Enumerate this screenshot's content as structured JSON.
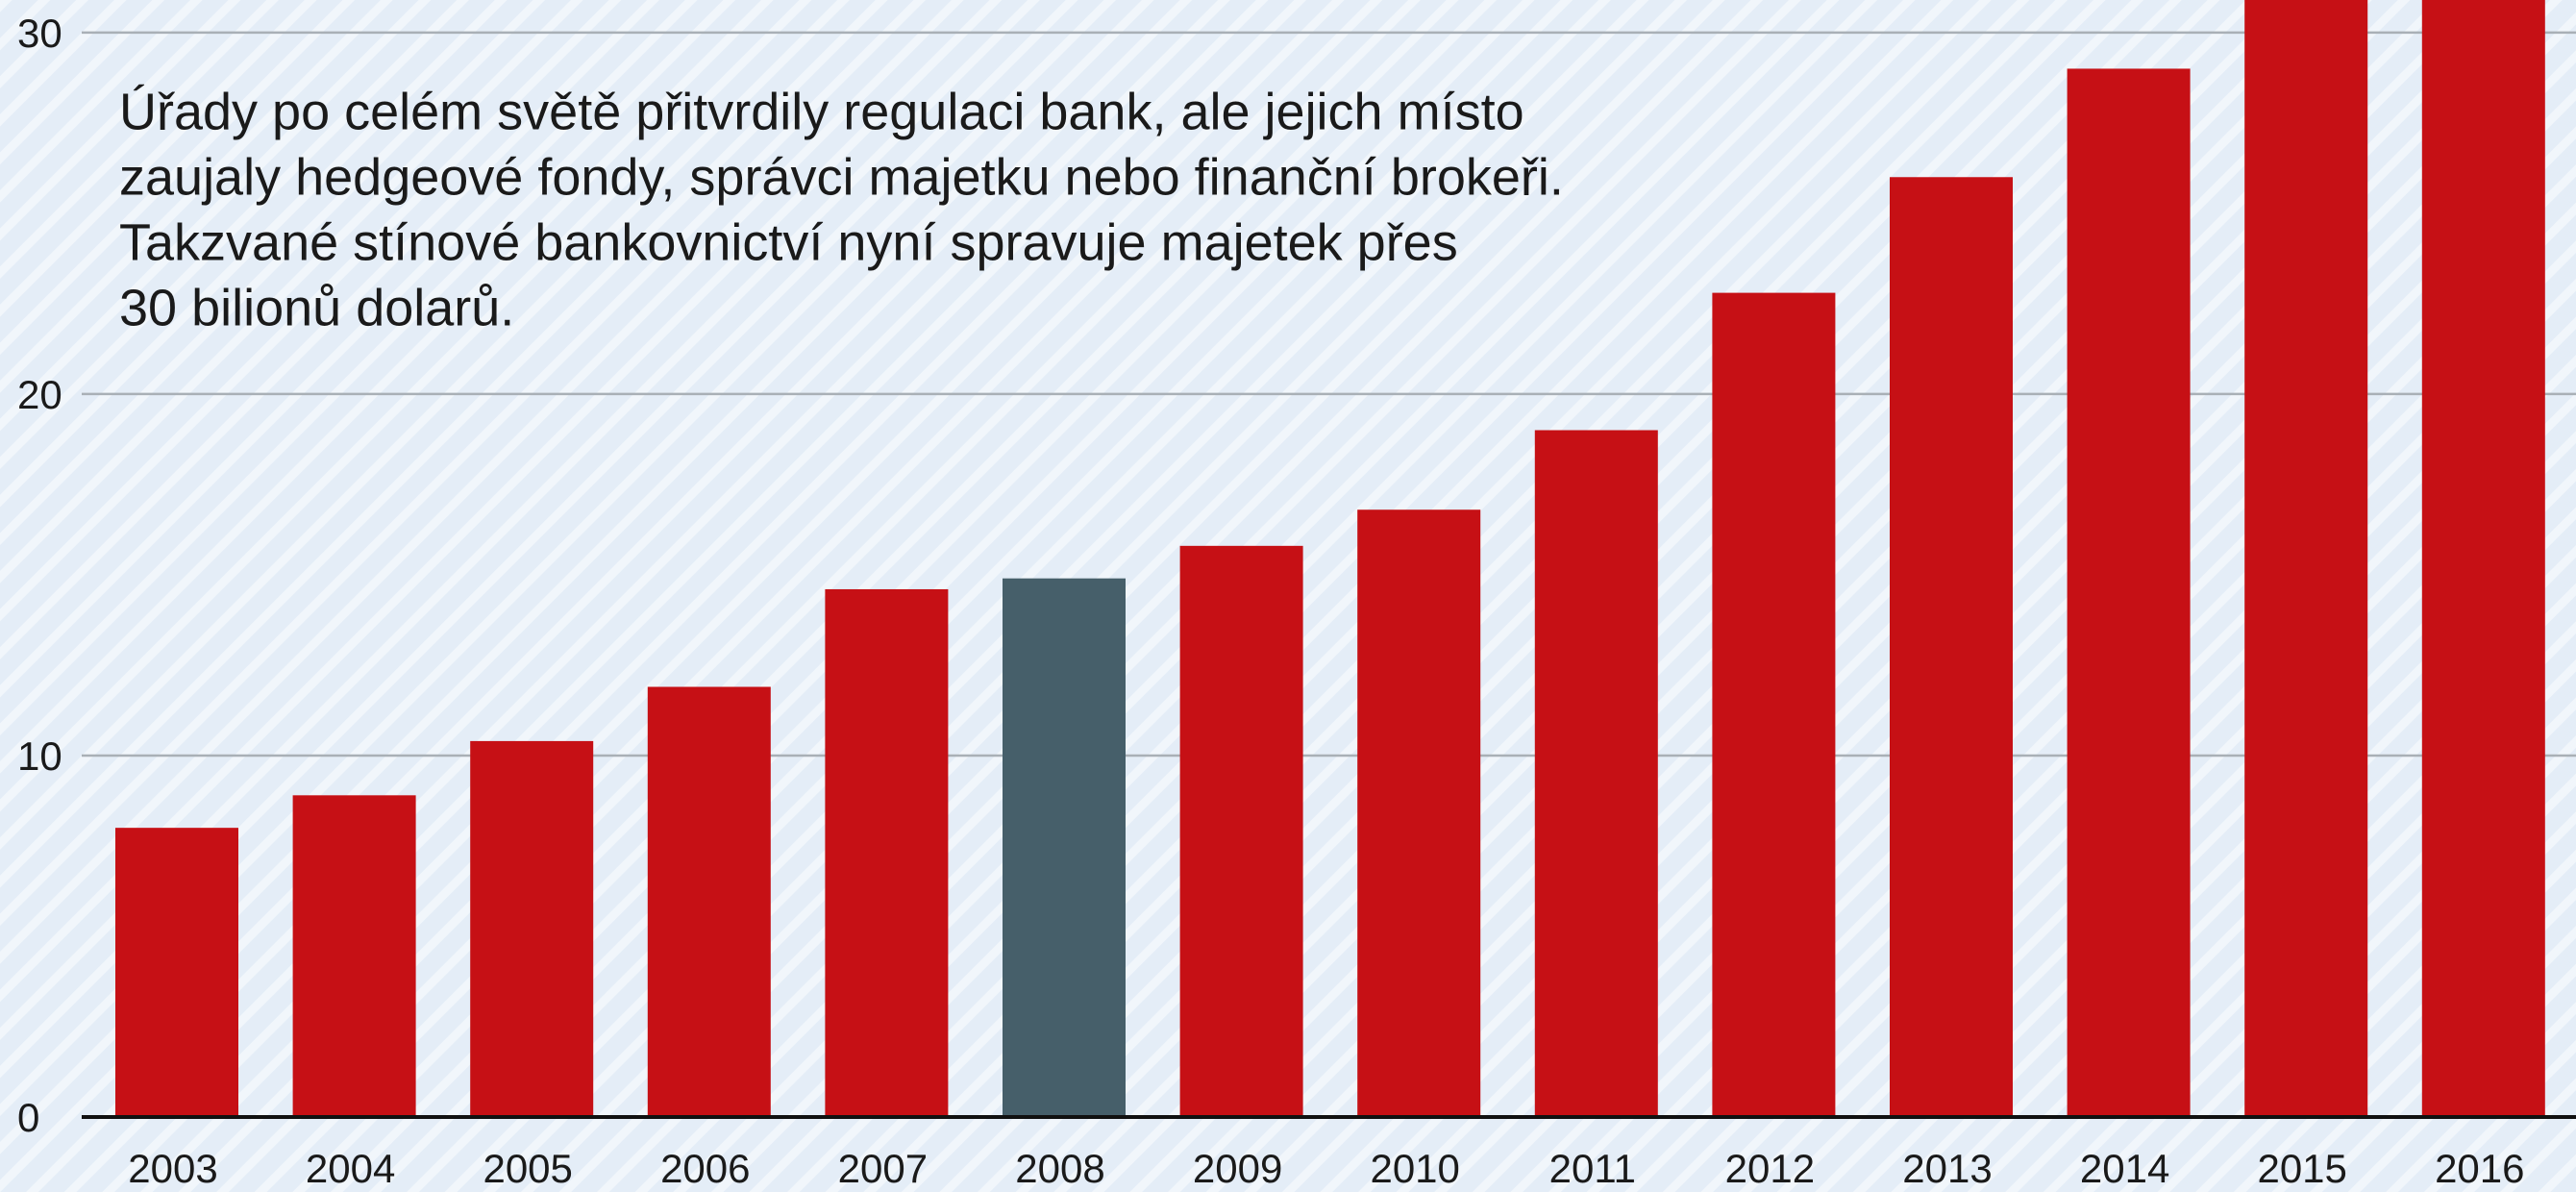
{
  "chart_data": {
    "type": "bar",
    "annotation": [
      "Úřady po celém světě přitvrdily regulaci bank, ale jejich místo",
      "zaujaly hedgeové fondy, správci majetku nebo finanční brokeři.",
      "Takzvané stínové bankovnictví nyní spravuje majetek přes",
      "30 bilionů dolarů."
    ],
    "categories": [
      "2003",
      "2004",
      "2005",
      "2006",
      "2007",
      "2008",
      "2009",
      "2010",
      "2011",
      "2012",
      "2013",
      "2014",
      "2015",
      "2016"
    ],
    "values": [
      8.0,
      8.9,
      10.4,
      11.9,
      14.6,
      14.9,
      15.8,
      16.8,
      19.0,
      22.8,
      26.0,
      29.0,
      32,
      34
    ],
    "colors": [
      "#c61015",
      "#c61015",
      "#c61015",
      "#c61015",
      "#c61015",
      "#465f6a",
      "#c61015",
      "#c61015",
      "#c61015",
      "#c61015",
      "#c61015",
      "#c61015",
      "#c61015",
      "#c61015"
    ],
    "ylim": [
      0,
      30.9
    ],
    "yticks": [
      0,
      10,
      20,
      30
    ],
    "grid": true
  }
}
